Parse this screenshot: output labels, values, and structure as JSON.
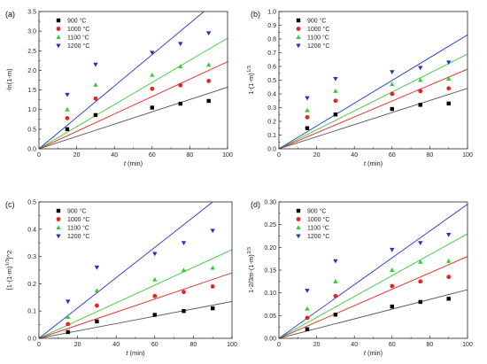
{
  "chart_data": [
    {
      "type": "scatter",
      "panel_label": "(a)",
      "xlabel": "t (min)",
      "ylabel": "-ln(1-m)",
      "xlim": [
        0,
        100
      ],
      "ylim": [
        0,
        3.5
      ],
      "xticks": [
        "0",
        "20",
        "40",
        "60",
        "80",
        "100"
      ],
      "yticks": [
        "0.0",
        "0.5",
        "1.0",
        "1.5",
        "2.0",
        "2.5",
        "3.0",
        "3.5"
      ],
      "legend_position": "top-left",
      "series": [
        {
          "name": "900 °C",
          "color": "#000000",
          "marker": "square",
          "x": [
            15,
            30,
            60,
            75,
            90
          ],
          "y": [
            0.5,
            0.86,
            1.05,
            1.15,
            1.22
          ],
          "fit_end": [
            100,
            1.57
          ]
        },
        {
          "name": "1000 °C",
          "color": "#e8241f",
          "marker": "circle",
          "x": [
            15,
            30,
            60,
            75,
            90
          ],
          "y": [
            0.78,
            1.28,
            1.53,
            1.62,
            1.73
          ],
          "fit_end": [
            100,
            2.22
          ]
        },
        {
          "name": "1100 °C",
          "color": "#33cc33",
          "marker": "triangle-up",
          "x": [
            15,
            30,
            60,
            75,
            90
          ],
          "y": [
            1.0,
            1.63,
            1.88,
            2.1,
            2.14
          ],
          "fit_end": [
            100,
            2.82
          ]
        },
        {
          "name": "1200 °C",
          "color": "#2233cc",
          "marker": "triangle-down",
          "x": [
            15,
            30,
            60,
            75,
            90
          ],
          "y": [
            1.38,
            2.15,
            2.45,
            2.68,
            2.95
          ],
          "fit_end": [
            90,
            3.6
          ]
        }
      ]
    },
    {
      "type": "scatter",
      "panel_label": "(b)",
      "xlabel": "t (min)",
      "ylabel": "1-(1-m)^{1/3}",
      "xlim": [
        0,
        100
      ],
      "ylim": [
        0,
        1.0
      ],
      "xticks": [
        "0",
        "20",
        "40",
        "60",
        "80",
        "100"
      ],
      "yticks": [
        "0.0",
        "0.1",
        "0.2",
        "0.3",
        "0.4",
        "0.5",
        "0.6",
        "0.7",
        "0.8",
        "0.9",
        "1.0"
      ],
      "legend_position": "top-left",
      "series": [
        {
          "name": "900 °C",
          "color": "#000000",
          "marker": "square",
          "x": [
            15,
            30,
            60,
            75,
            90
          ],
          "y": [
            0.15,
            0.25,
            0.29,
            0.32,
            0.33
          ],
          "fit_end": [
            100,
            0.44
          ]
        },
        {
          "name": "1000 °C",
          "color": "#e8241f",
          "marker": "circle",
          "x": [
            15,
            30,
            60,
            75,
            90
          ],
          "y": [
            0.23,
            0.35,
            0.4,
            0.42,
            0.44
          ],
          "fit_end": [
            100,
            0.58
          ]
        },
        {
          "name": "1100 °C",
          "color": "#33cc33",
          "marker": "triangle-up",
          "x": [
            15,
            30,
            60,
            75,
            90
          ],
          "y": [
            0.28,
            0.42,
            0.47,
            0.5,
            0.51
          ],
          "fit_end": [
            100,
            0.69
          ]
        },
        {
          "name": "1200 °C",
          "color": "#2233cc",
          "marker": "triangle-down",
          "x": [
            15,
            30,
            60,
            75,
            90
          ],
          "y": [
            0.37,
            0.51,
            0.56,
            0.59,
            0.63
          ],
          "fit_end": [
            100,
            0.83
          ]
        }
      ]
    },
    {
      "type": "scatter",
      "panel_label": "(c)",
      "xlabel": "t (min)",
      "ylabel": "[1-(1-m)^{1/3}]^2",
      "xlim": [
        0,
        100
      ],
      "ylim": [
        0,
        0.5
      ],
      "xticks": [
        "0",
        "20",
        "40",
        "60",
        "80",
        "100"
      ],
      "yticks": [
        "0.0",
        "0.1",
        "0.2",
        "0.3",
        "0.4",
        "0.5"
      ],
      "legend_position": "top-left",
      "series": [
        {
          "name": "900 °C",
          "color": "#000000",
          "marker": "square",
          "x": [
            15,
            30,
            60,
            75,
            90
          ],
          "y": [
            0.023,
            0.062,
            0.086,
            0.1,
            0.11
          ],
          "fit_end": [
            100,
            0.135
          ]
        },
        {
          "name": "1000 °C",
          "color": "#e8241f",
          "marker": "circle",
          "x": [
            15,
            30,
            60,
            75,
            90
          ],
          "y": [
            0.052,
            0.12,
            0.155,
            0.17,
            0.19
          ],
          "fit_end": [
            100,
            0.24
          ]
        },
        {
          "name": "1100 °C",
          "color": "#33cc33",
          "marker": "triangle-up",
          "x": [
            15,
            30,
            60,
            75,
            90
          ],
          "y": [
            0.078,
            0.175,
            0.215,
            0.25,
            0.258
          ],
          "fit_end": [
            100,
            0.325
          ]
        },
        {
          "name": "1200 °C",
          "color": "#2233cc",
          "marker": "triangle-down",
          "x": [
            15,
            30,
            60,
            75,
            90
          ],
          "y": [
            0.135,
            0.26,
            0.31,
            0.35,
            0.395
          ],
          "fit_end": [
            90,
            0.5
          ]
        }
      ]
    },
    {
      "type": "scatter",
      "panel_label": "(d)",
      "xlabel": "t (min)",
      "ylabel": "1-2/3m-(1-m)^{2/3}",
      "xlim": [
        0,
        100
      ],
      "ylim": [
        0,
        0.3
      ],
      "xticks": [
        "0",
        "20",
        "40",
        "60",
        "80",
        "100"
      ],
      "yticks": [
        "0.00",
        "0.05",
        "0.10",
        "0.15",
        "0.20",
        "0.25",
        "0.30"
      ],
      "legend_position": "top-left",
      "series": [
        {
          "name": "900 °C",
          "color": "#000000",
          "marker": "square",
          "x": [
            15,
            30,
            60,
            75,
            90
          ],
          "y": [
            0.02,
            0.052,
            0.07,
            0.08,
            0.087
          ],
          "fit_end": [
            100,
            0.107
          ]
        },
        {
          "name": "1000 °C",
          "color": "#e8241f",
          "marker": "circle",
          "x": [
            15,
            30,
            60,
            75,
            90
          ],
          "y": [
            0.045,
            0.093,
            0.115,
            0.125,
            0.135
          ],
          "fit_end": [
            100,
            0.18
          ]
        },
        {
          "name": "1100 °C",
          "color": "#33cc33",
          "marker": "triangle-up",
          "x": [
            15,
            30,
            60,
            75,
            90
          ],
          "y": [
            0.065,
            0.125,
            0.15,
            0.168,
            0.17
          ],
          "fit_end": [
            100,
            0.23
          ]
        },
        {
          "name": "1200 °C",
          "color": "#2233cc",
          "marker": "triangle-down",
          "x": [
            15,
            30,
            60,
            75,
            90
          ],
          "y": [
            0.105,
            0.17,
            0.195,
            0.21,
            0.228
          ],
          "fit_end": [
            100,
            0.295
          ]
        }
      ]
    }
  ]
}
